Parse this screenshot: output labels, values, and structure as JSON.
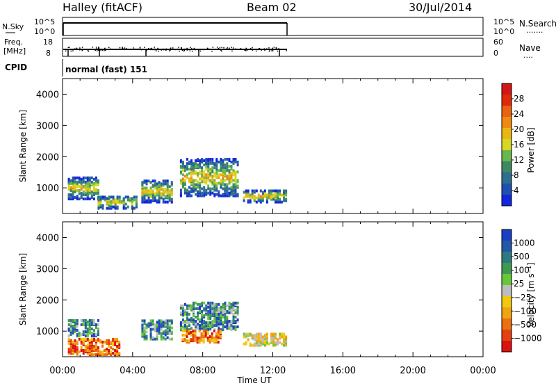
{
  "header": {
    "station": "Halley (fitACF)",
    "beam": "Beam 02",
    "date": "30/Jul/2014"
  },
  "nsky_panel": {
    "left_label": "N.Sky",
    "left_ticks": [
      "10^5",
      "10^0"
    ],
    "right_ticks": [
      "10^5",
      "10^0"
    ],
    "right_label": "N.Search",
    "right_label_dots": "·······"
  },
  "freq_panel": {
    "left_label_1": "Freq.",
    "left_label_2": "[MHz]",
    "left_ticks": [
      "18",
      "8"
    ],
    "right_ticks": [
      "60",
      "0"
    ],
    "right_label": "Nave",
    "right_label_dots": "····"
  },
  "cpid": {
    "label": "CPID",
    "value": "normal (fast) 151"
  },
  "chart_data": [
    {
      "type": "heatmap",
      "panel": "power",
      "ylabel": "Slant Range [km]",
      "x_range_hours": [
        0,
        24
      ],
      "ylim": [
        180,
        4500
      ],
      "y_ticks": [
        1000,
        2000,
        3000,
        4000
      ],
      "colorbar": {
        "label": "Power [dB]",
        "ticks": [
          "28",
          "24",
          "20",
          "16",
          "12",
          "8",
          "4"
        ],
        "colors": [
          "#d51515",
          "#e02a0a",
          "#ea620f",
          "#f08a0f",
          "#ebb615",
          "#d7d822",
          "#6ab64e",
          "#3e8a60",
          "#2e6e8e",
          "#1f4fb2",
          "#1226e0"
        ]
      },
      "echo_regions": [
        {
          "t_start": 0.3,
          "t_end": 2.0,
          "r_low": 600,
          "r_high": 1300,
          "level": "mixed"
        },
        {
          "t_start": 2.0,
          "t_end": 4.2,
          "r_low": 300,
          "r_high": 700,
          "level": "mixed"
        },
        {
          "t_start": 4.5,
          "t_end": 6.2,
          "r_low": 500,
          "r_high": 1200,
          "level": "mixed"
        },
        {
          "t_start": 6.7,
          "t_end": 10.0,
          "r_low": 700,
          "r_high": 1900,
          "level": "mixed"
        },
        {
          "t_start": 10.3,
          "t_end": 12.8,
          "r_low": 500,
          "r_high": 900,
          "level": "mixed"
        }
      ]
    },
    {
      "type": "heatmap",
      "panel": "velocity",
      "ylabel": "Slant Range [km]",
      "xlabel": "Time UT",
      "x_ticks": [
        "00:00",
        "04:00",
        "08:00",
        "12:00",
        "16:00",
        "20:00",
        "00:00"
      ],
      "x_range_hours": [
        0,
        24
      ],
      "ylim": [
        180,
        4500
      ],
      "y_ticks": [
        1000,
        2000,
        3000,
        4000
      ],
      "colorbar": {
        "label": "Velocity [m s⁻¹]",
        "ticks": [
          "1000",
          "500",
          "100",
          "25",
          "−25",
          "−100",
          "−500",
          "−1000"
        ],
        "colors": [
          "#1a3fc4",
          "#2357a8",
          "#2f7a80",
          "#3f9a50",
          "#66c838",
          "#bdbdbd",
          "#f2c80f",
          "#f0a510",
          "#ea7010",
          "#e64010",
          "#dd1010"
        ]
      },
      "echo_regions": [
        {
          "t_start": 0.3,
          "t_end": 2.0,
          "r_low": 800,
          "r_high": 1300,
          "level": "positive"
        },
        {
          "t_start": 0.3,
          "t_end": 3.2,
          "r_low": 200,
          "r_high": 700,
          "level": "negative"
        },
        {
          "t_start": 4.5,
          "t_end": 6.2,
          "r_low": 700,
          "r_high": 1300,
          "level": "positive"
        },
        {
          "t_start": 6.7,
          "t_end": 10.0,
          "r_low": 1000,
          "r_high": 1900,
          "level": "positive"
        },
        {
          "t_start": 6.8,
          "t_end": 9.0,
          "r_low": 600,
          "r_high": 1000,
          "level": "negative"
        },
        {
          "t_start": 10.3,
          "t_end": 12.8,
          "r_low": 500,
          "r_high": 900,
          "level": "small"
        }
      ]
    }
  ]
}
